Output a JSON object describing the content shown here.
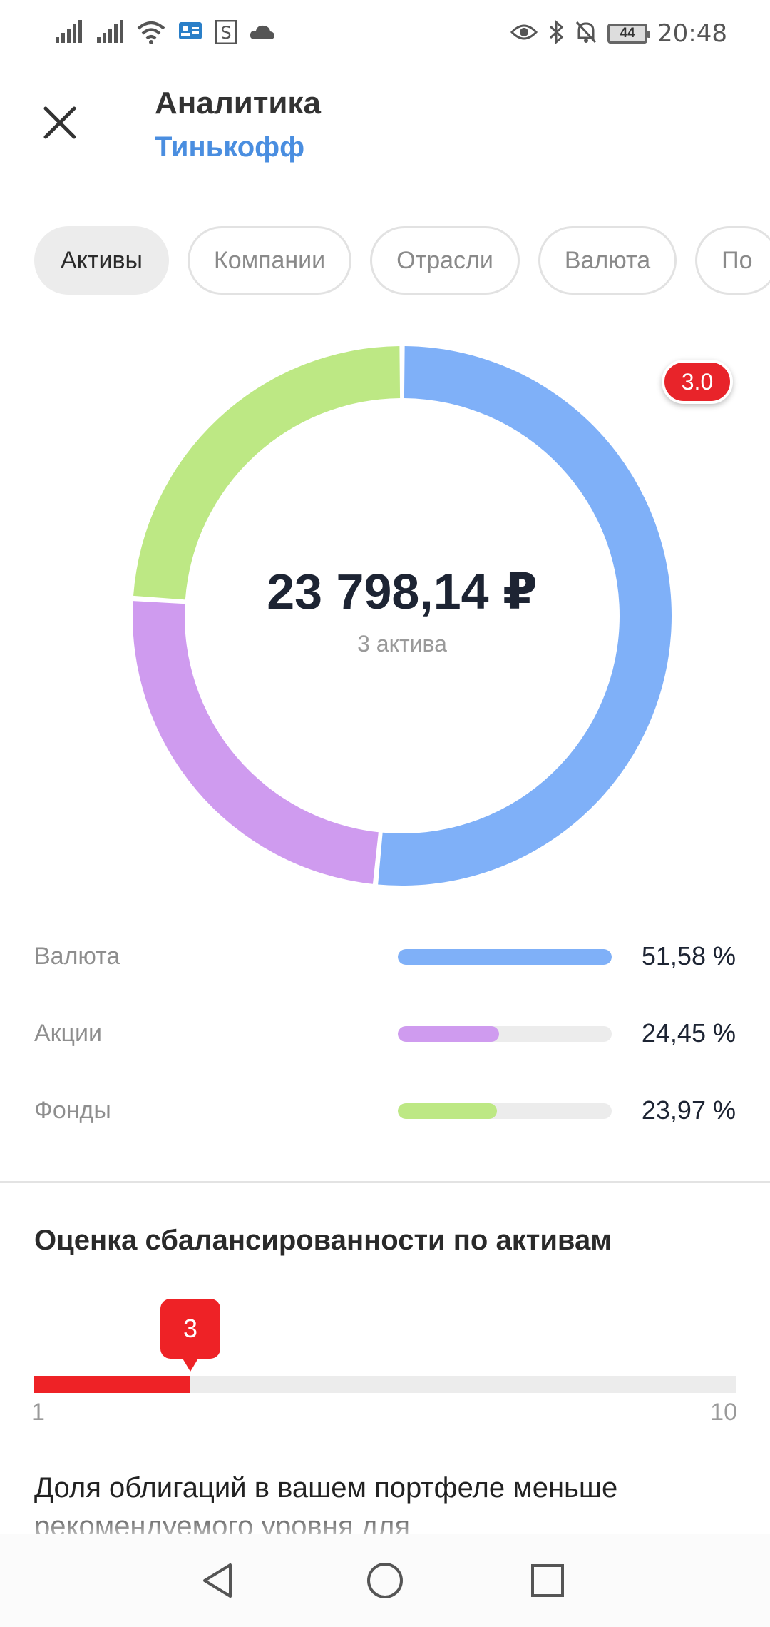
{
  "status_bar": {
    "time": "20:48",
    "battery": "44",
    "icons": [
      "signal-icon",
      "signal-icon",
      "wifi-icon",
      "contact-card-icon",
      "s-app-icon",
      "cloud-icon",
      "eye-icon",
      "bluetooth-icon",
      "bell-off-icon"
    ]
  },
  "header": {
    "title": "Аналитика",
    "subtitle": "Тинькофф",
    "close_icon": "close-icon"
  },
  "tabs": [
    {
      "label": "Активы",
      "active": true
    },
    {
      "label": "Компании",
      "active": false
    },
    {
      "label": "Отрасли",
      "active": false
    },
    {
      "label": "Валюта",
      "active": false
    },
    {
      "label": "По",
      "active": false
    }
  ],
  "donut": {
    "total": "23 798,14 ₽",
    "count": "3 актива",
    "badge": "3.0"
  },
  "chart_data": {
    "type": "pie",
    "categories": [
      "Валюта",
      "Акции",
      "Фонды"
    ],
    "values": [
      51.58,
      24.45,
      23.97
    ],
    "labels": [
      "51,58 %",
      "24,45 %",
      "23,97 %"
    ],
    "colors": [
      "#7fb0f8",
      "#cf9bef",
      "#bde884"
    ]
  },
  "balance": {
    "title": "Оценка сбалансированности по активам",
    "score": "3",
    "score_value": 3,
    "min": "1",
    "max": "10",
    "min_value": 1,
    "max_value": 10,
    "accent": "#ee2226",
    "description": "Доля облигаций в вашем портфеле меньше рекомендуемого уровня для"
  },
  "navbar": {
    "back_icon": "back-triangle-icon",
    "home_icon": "home-circle-icon",
    "recents_icon": "recents-square-icon"
  }
}
